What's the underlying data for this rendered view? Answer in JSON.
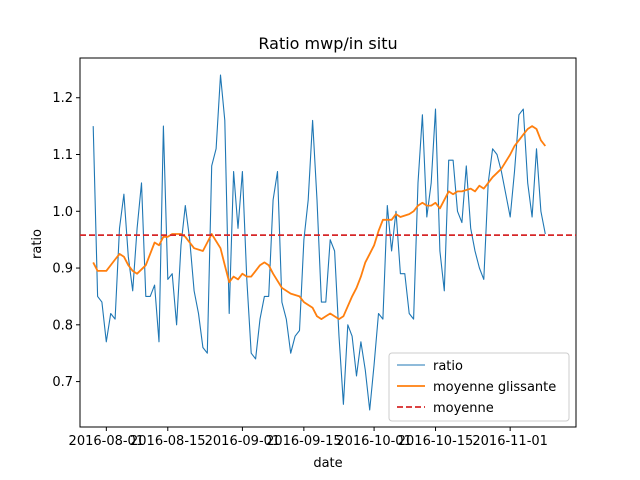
{
  "chart_data": {
    "type": "line",
    "title": "Ratio mwp/in situ",
    "xlabel": "date",
    "ylabel": "ratio",
    "x_ticks": [
      "2016-08-01",
      "2016-08-15",
      "2016-09-01",
      "2016-09-15",
      "2016-10-01",
      "2016-10-15",
      "2016-11-01"
    ],
    "y_ticks": [
      0.7,
      0.8,
      0.9,
      1.0,
      1.1,
      1.2
    ],
    "xlim": [
      "2016-07-26",
      "2016-11-16"
    ],
    "ylim": [
      0.62,
      1.27
    ],
    "grid": false,
    "legend_position": "lower right",
    "mean_value": 0.958,
    "series": [
      {
        "name": "ratio",
        "style": "solid-line",
        "color": "#1f77b4",
        "points": [
          [
            "2016-07-29",
            1.15
          ],
          [
            "2016-07-30",
            0.85
          ],
          [
            "2016-07-31",
            0.84
          ],
          [
            "2016-08-01",
            0.77
          ],
          [
            "2016-08-02",
            0.82
          ],
          [
            "2016-08-03",
            0.81
          ],
          [
            "2016-08-04",
            0.97
          ],
          [
            "2016-08-05",
            1.03
          ],
          [
            "2016-08-06",
            0.92
          ],
          [
            "2016-08-07",
            0.86
          ],
          [
            "2016-08-08",
            0.97
          ],
          [
            "2016-08-09",
            1.05
          ],
          [
            "2016-08-10",
            0.85
          ],
          [
            "2016-08-11",
            0.85
          ],
          [
            "2016-08-12",
            0.87
          ],
          [
            "2016-08-13",
            0.77
          ],
          [
            "2016-08-14",
            1.15
          ],
          [
            "2016-08-15",
            0.88
          ],
          [
            "2016-08-16",
            0.89
          ],
          [
            "2016-08-17",
            0.8
          ],
          [
            "2016-08-18",
            0.94
          ],
          [
            "2016-08-19",
            1.01
          ],
          [
            "2016-08-20",
            0.95
          ],
          [
            "2016-08-21",
            0.86
          ],
          [
            "2016-08-22",
            0.82
          ],
          [
            "2016-08-23",
            0.76
          ],
          [
            "2016-08-24",
            0.75
          ],
          [
            "2016-08-25",
            1.08
          ],
          [
            "2016-08-26",
            1.11
          ],
          [
            "2016-08-27",
            1.24
          ],
          [
            "2016-08-28",
            1.16
          ],
          [
            "2016-08-29",
            0.82
          ],
          [
            "2016-08-30",
            1.07
          ],
          [
            "2016-08-31",
            0.97
          ],
          [
            "2016-09-01",
            1.07
          ],
          [
            "2016-09-02",
            0.88
          ],
          [
            "2016-09-03",
            0.75
          ],
          [
            "2016-09-04",
            0.74
          ],
          [
            "2016-09-05",
            0.81
          ],
          [
            "2016-09-06",
            0.85
          ],
          [
            "2016-09-07",
            0.85
          ],
          [
            "2016-09-08",
            1.02
          ],
          [
            "2016-09-09",
            1.07
          ],
          [
            "2016-09-10",
            0.84
          ],
          [
            "2016-09-11",
            0.81
          ],
          [
            "2016-09-12",
            0.75
          ],
          [
            "2016-09-13",
            0.78
          ],
          [
            "2016-09-14",
            0.79
          ],
          [
            "2016-09-15",
            0.95
          ],
          [
            "2016-09-16",
            1.02
          ],
          [
            "2016-09-17",
            1.16
          ],
          [
            "2016-09-18",
            1.02
          ],
          [
            "2016-09-19",
            0.84
          ],
          [
            "2016-09-20",
            0.84
          ],
          [
            "2016-09-21",
            0.95
          ],
          [
            "2016-09-22",
            0.93
          ],
          [
            "2016-09-23",
            0.78
          ],
          [
            "2016-09-24",
            0.66
          ],
          [
            "2016-09-25",
            0.8
          ],
          [
            "2016-09-26",
            0.78
          ],
          [
            "2016-09-27",
            0.71
          ],
          [
            "2016-09-28",
            0.77
          ],
          [
            "2016-09-29",
            0.72
          ],
          [
            "2016-09-30",
            0.65
          ],
          [
            "2016-10-01",
            0.73
          ],
          [
            "2016-10-02",
            0.82
          ],
          [
            "2016-10-03",
            0.81
          ],
          [
            "2016-10-04",
            1.01
          ],
          [
            "2016-10-05",
            0.93
          ],
          [
            "2016-10-06",
            1.0
          ],
          [
            "2016-10-07",
            0.89
          ],
          [
            "2016-10-08",
            0.89
          ],
          [
            "2016-10-09",
            0.82
          ],
          [
            "2016-10-10",
            0.81
          ],
          [
            "2016-10-11",
            1.05
          ],
          [
            "2016-10-12",
            1.17
          ],
          [
            "2016-10-13",
            0.99
          ],
          [
            "2016-10-14",
            1.05
          ],
          [
            "2016-10-15",
            1.18
          ],
          [
            "2016-10-16",
            0.93
          ],
          [
            "2016-10-17",
            0.86
          ],
          [
            "2016-10-18",
            1.09
          ],
          [
            "2016-10-19",
            1.09
          ],
          [
            "2016-10-20",
            1.0
          ],
          [
            "2016-10-21",
            0.98
          ],
          [
            "2016-10-22",
            1.08
          ],
          [
            "2016-10-23",
            0.97
          ],
          [
            "2016-10-24",
            0.93
          ],
          [
            "2016-10-25",
            0.9
          ],
          [
            "2016-10-26",
            0.88
          ],
          [
            "2016-10-27",
            1.05
          ],
          [
            "2016-10-28",
            1.11
          ],
          [
            "2016-10-29",
            1.1
          ],
          [
            "2016-10-30",
            1.07
          ],
          [
            "2016-10-31",
            1.03
          ],
          [
            "2016-11-01",
            0.99
          ],
          [
            "2016-11-02",
            1.07
          ],
          [
            "2016-11-03",
            1.17
          ],
          [
            "2016-11-04",
            1.18
          ],
          [
            "2016-11-05",
            1.05
          ],
          [
            "2016-11-06",
            0.99
          ],
          [
            "2016-11-07",
            1.11
          ],
          [
            "2016-11-08",
            1.0
          ],
          [
            "2016-11-09",
            0.96
          ]
        ]
      },
      {
        "name": "moyenne glissante",
        "style": "solid-line",
        "color": "#ff7f0e",
        "points": [
          [
            "2016-07-29",
            0.91
          ],
          [
            "2016-07-30",
            0.895
          ],
          [
            "2016-08-01",
            0.895
          ],
          [
            "2016-08-03",
            0.915
          ],
          [
            "2016-08-04",
            0.925
          ],
          [
            "2016-08-05",
            0.92
          ],
          [
            "2016-08-06",
            0.905
          ],
          [
            "2016-08-07",
            0.895
          ],
          [
            "2016-08-08",
            0.89
          ],
          [
            "2016-08-10",
            0.905
          ],
          [
            "2016-08-12",
            0.945
          ],
          [
            "2016-08-13",
            0.94
          ],
          [
            "2016-08-14",
            0.955
          ],
          [
            "2016-08-15",
            0.955
          ],
          [
            "2016-08-16",
            0.96
          ],
          [
            "2016-08-18",
            0.96
          ],
          [
            "2016-08-19",
            0.955
          ],
          [
            "2016-08-21",
            0.935
          ],
          [
            "2016-08-23",
            0.93
          ],
          [
            "2016-08-24",
            0.945
          ],
          [
            "2016-08-25",
            0.96
          ],
          [
            "2016-08-27",
            0.935
          ],
          [
            "2016-08-28",
            0.905
          ],
          [
            "2016-08-29",
            0.875
          ],
          [
            "2016-08-30",
            0.885
          ],
          [
            "2016-08-31",
            0.88
          ],
          [
            "2016-09-01",
            0.89
          ],
          [
            "2016-09-02",
            0.885
          ],
          [
            "2016-09-03",
            0.885
          ],
          [
            "2016-09-04",
            0.895
          ],
          [
            "2016-09-05",
            0.905
          ],
          [
            "2016-09-06",
            0.91
          ],
          [
            "2016-09-07",
            0.905
          ],
          [
            "2016-09-08",
            0.89
          ],
          [
            "2016-09-10",
            0.865
          ],
          [
            "2016-09-12",
            0.855
          ],
          [
            "2016-09-14",
            0.85
          ],
          [
            "2016-09-15",
            0.84
          ],
          [
            "2016-09-17",
            0.83
          ],
          [
            "2016-09-18",
            0.815
          ],
          [
            "2016-09-19",
            0.81
          ],
          [
            "2016-09-20",
            0.815
          ],
          [
            "2016-09-21",
            0.82
          ],
          [
            "2016-09-23",
            0.81
          ],
          [
            "2016-09-24",
            0.815
          ],
          [
            "2016-09-26",
            0.85
          ],
          [
            "2016-09-27",
            0.865
          ],
          [
            "2016-09-28",
            0.885
          ],
          [
            "2016-09-29",
            0.91
          ],
          [
            "2016-09-30",
            0.925
          ],
          [
            "2016-10-01",
            0.94
          ],
          [
            "2016-10-02",
            0.965
          ],
          [
            "2016-10-03",
            0.985
          ],
          [
            "2016-10-04",
            0.985
          ],
          [
            "2016-10-05",
            0.985
          ],
          [
            "2016-10-06",
            0.995
          ],
          [
            "2016-10-07",
            0.99
          ],
          [
            "2016-10-09",
            0.995
          ],
          [
            "2016-10-10",
            1.0
          ],
          [
            "2016-10-11",
            1.01
          ],
          [
            "2016-10-12",
            1.015
          ],
          [
            "2016-10-13",
            1.01
          ],
          [
            "2016-10-14",
            1.01
          ],
          [
            "2016-10-15",
            1.015
          ],
          [
            "2016-10-16",
            1.005
          ],
          [
            "2016-10-17",
            1.02
          ],
          [
            "2016-10-18",
            1.035
          ],
          [
            "2016-10-19",
            1.03
          ],
          [
            "2016-10-20",
            1.035
          ],
          [
            "2016-10-21",
            1.035
          ],
          [
            "2016-10-23",
            1.04
          ],
          [
            "2016-10-24",
            1.035
          ],
          [
            "2016-10-25",
            1.045
          ],
          [
            "2016-10-26",
            1.04
          ],
          [
            "2016-10-27",
            1.05
          ],
          [
            "2016-10-28",
            1.06
          ],
          [
            "2016-10-30",
            1.075
          ],
          [
            "2016-11-01",
            1.1
          ],
          [
            "2016-11-02",
            1.115
          ],
          [
            "2016-11-03",
            1.125
          ],
          [
            "2016-11-04",
            1.135
          ],
          [
            "2016-11-05",
            1.145
          ],
          [
            "2016-11-06",
            1.15
          ],
          [
            "2016-11-07",
            1.145
          ],
          [
            "2016-11-08",
            1.125
          ],
          [
            "2016-11-09",
            1.115
          ]
        ]
      },
      {
        "name": "moyenne",
        "style": "dashed-line",
        "color": "#d62728"
      }
    ]
  }
}
